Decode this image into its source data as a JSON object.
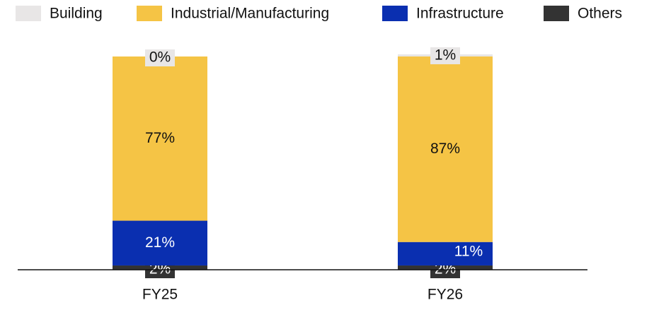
{
  "chart_data": {
    "type": "stacked_bar",
    "categories": [
      "FY25",
      "FY26"
    ],
    "series": [
      {
        "name": "Building",
        "color": "#e8e6e6",
        "values": [
          0,
          1
        ],
        "value_labels": [
          "0%",
          "1%"
        ]
      },
      {
        "name": "Industrial/Manufacturing",
        "color": "#f5c445",
        "values": [
          77,
          87
        ],
        "value_labels": [
          "77%",
          "87%"
        ]
      },
      {
        "name": "Infrastructure",
        "color": "#0a2fb0",
        "values": [
          21,
          11
        ],
        "value_labels": [
          "21%",
          "11%"
        ]
      },
      {
        "name": "Others",
        "color": "#333333",
        "values": [
          2,
          2
        ],
        "value_labels": [
          "2%",
          "2%"
        ]
      }
    ],
    "ylim": [
      0,
      100
    ],
    "legend": "top"
  }
}
